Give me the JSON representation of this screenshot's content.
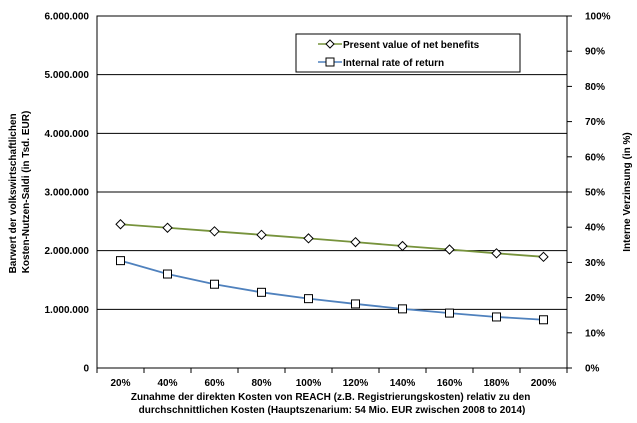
{
  "chart_data": {
    "type": "line",
    "categories": [
      "20%",
      "40%",
      "60%",
      "80%",
      "100%",
      "120%",
      "140%",
      "160%",
      "180%",
      "200%"
    ],
    "series": [
      {
        "name": "Present value of net benefits",
        "axis": "left",
        "color": "#77933c",
        "marker": "diamond",
        "values": [
          2450000,
          2390000,
          2330000,
          2270000,
          2210000,
          2145000,
          2080000,
          2020000,
          1955000,
          1895000
        ]
      },
      {
        "name": "Internal rate of return",
        "axis": "right",
        "color": "#4f81bd",
        "marker": "square",
        "values": [
          30.5,
          26.7,
          23.8,
          21.5,
          19.7,
          18.2,
          16.8,
          15.6,
          14.5,
          13.7
        ]
      }
    ],
    "ylabel_left": [
      "Barwert der volkswirtschaftlichen",
      "Kosten-Nutzen-Saldi (in Tsd. EUR)"
    ],
    "ylabel_right": "Interne Verzinsung (in %)",
    "xlabel": [
      "Zunahme der direkten Kosten von REACH (z.B. Registrierungskosten) relativ zu den",
      "durchschnittlichen Kosten (Hauptszenarium: 54 Mio. EUR zwischen 2008 to 2014)"
    ],
    "y_left_ticks": [
      "0",
      "1.000.000",
      "2.000.000",
      "3.000.000",
      "4.000.000",
      "5.000.000",
      "6.000.000"
    ],
    "y_left_range": [
      0,
      6000000
    ],
    "y_right_ticks": [
      "0%",
      "10%",
      "20%",
      "30%",
      "40%",
      "50%",
      "60%",
      "70%",
      "80%",
      "90%",
      "100%"
    ],
    "y_right_range": [
      0,
      100
    ],
    "gridlines": "major-left",
    "legend_position": "top-right"
  }
}
